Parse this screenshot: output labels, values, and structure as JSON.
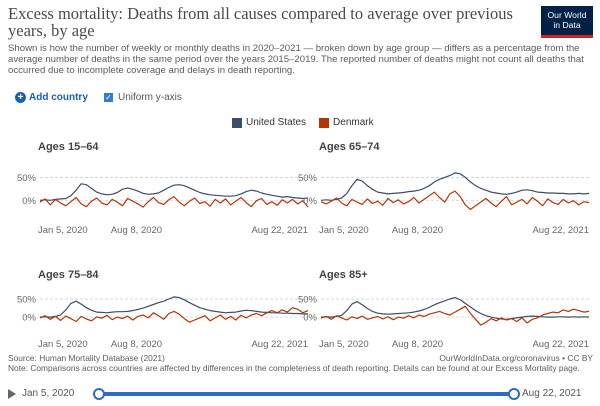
{
  "header": {
    "title": "Excess mortality: Deaths from all causes compared to average over previous years, by age",
    "subtitle": "Shown is how the number of weekly or monthly deaths in 2020–2021 — broken down by age group — differs as a percentage from the average number of deaths in the same period over the years 2015–2019. The reported number of deaths might not count all deaths that occurred due to incomplete coverage and delays in death reporting.",
    "logo_line1": "Our World",
    "logo_line2": "in Data"
  },
  "controls": {
    "add_country_label": "Add country",
    "uniform_y_label": "Uniform y-axis"
  },
  "colors": {
    "us": "#3c4e66",
    "dk": "#b13507"
  },
  "chart_data": [
    {
      "type": "line",
      "title": "Ages 15–64",
      "x_ticks": [
        "Jan 5, 2020",
        "Aug 8, 2020",
        "Aug 22, 2021"
      ],
      "y_ticks": [
        "50%",
        "0%"
      ],
      "ylim": [
        -30,
        75
      ],
      "legend": [
        "United States",
        "Denmark"
      ],
      "series": [
        {
          "name": "United States",
          "values": [
            0,
            1,
            0,
            2,
            3,
            4,
            10,
            22,
            36,
            34,
            26,
            18,
            14,
            12,
            13,
            17,
            24,
            27,
            24,
            20,
            15,
            13,
            14,
            16,
            22,
            28,
            33,
            34,
            32,
            27,
            22,
            17,
            14,
            12,
            11,
            10,
            9,
            9,
            10,
            14,
            19,
            22,
            20,
            16,
            13,
            11,
            9,
            7,
            8,
            6,
            5,
            4,
            5
          ]
        },
        {
          "name": "Denmark",
          "values": [
            -4,
            3,
            -10,
            2,
            -6,
            -12,
            -3,
            6,
            -8,
            -14,
            -2,
            5,
            -6,
            -10,
            2,
            -4,
            -12,
            4,
            -2,
            -8,
            -15,
            -3,
            6,
            -5,
            -9,
            1,
            8,
            -4,
            -12,
            -2,
            5,
            -7,
            -3,
            -13,
            2,
            -6,
            3,
            -10,
            -2,
            6,
            -5,
            -14,
            -1,
            4,
            -9,
            -3,
            -11,
            1,
            -6,
            2,
            -8,
            -1,
            -15
          ]
        }
      ]
    },
    {
      "type": "line",
      "title": "Ages 65–74",
      "x_ticks": [
        "Jan 5, 2020",
        "Aug 8, 2020",
        "Aug 22, 2021"
      ],
      "y_ticks": [
        "50%",
        "0%"
      ],
      "ylim": [
        -30,
        75
      ],
      "legend": [
        "United States",
        "Denmark"
      ],
      "series": [
        {
          "name": "United States",
          "values": [
            0,
            1,
            0,
            2,
            5,
            15,
            32,
            46,
            42,
            32,
            24,
            18,
            16,
            14,
            15,
            16,
            17,
            19,
            20,
            22,
            26,
            32,
            40,
            46,
            50,
            54,
            60,
            58,
            50,
            40,
            32,
            26,
            22,
            18,
            16,
            14,
            13,
            15,
            18,
            22,
            23,
            21,
            18,
            17,
            16,
            16,
            15,
            15,
            14,
            14,
            15,
            14,
            15
          ]
        },
        {
          "name": "Denmark",
          "values": [
            -3,
            -8,
            -2,
            5,
            -6,
            -12,
            2,
            -4,
            -9,
            3,
            -7,
            -2,
            -11,
            4,
            -5,
            1,
            -8,
            -3,
            6,
            -6,
            2,
            10,
            18,
            6,
            -4,
            14,
            20,
            8,
            -10,
            -20,
            -12,
            -4,
            4,
            -6,
            -14,
            -2,
            8,
            -10,
            -4,
            2,
            -8,
            6,
            -2,
            -12,
            3,
            -5,
            -9,
            2,
            -6,
            -1,
            -10,
            -3,
            -5
          ]
        }
      ]
    },
    {
      "type": "line",
      "title": "Ages 75–84",
      "x_ticks": [
        "Jan 5, 2020",
        "Aug 8, 2020",
        "Aug 22, 2021"
      ],
      "y_ticks": [
        "50%",
        "0%"
      ],
      "ylim": [
        -30,
        75
      ],
      "legend": [
        "United States",
        "Denmark"
      ],
      "series": [
        {
          "name": "United States",
          "values": [
            0,
            1,
            0,
            2,
            6,
            20,
            38,
            44,
            36,
            26,
            19,
            14,
            13,
            12,
            14,
            15,
            15,
            16,
            18,
            21,
            25,
            30,
            35,
            40,
            44,
            50,
            56,
            54,
            48,
            40,
            33,
            26,
            22,
            18,
            16,
            14,
            12,
            13,
            14,
            17,
            19,
            18,
            16,
            14,
            13,
            12,
            12,
            11,
            11,
            10,
            10,
            9,
            9
          ]
        },
        {
          "name": "Denmark",
          "values": [
            -2,
            4,
            -6,
            2,
            -9,
            3,
            -4,
            -12,
            2,
            -5,
            -10,
            1,
            -3,
            5,
            -7,
            0,
            -4,
            3,
            -8,
            2,
            6,
            -2,
            12,
            4,
            -6,
            10,
            16,
            8,
            -4,
            -14,
            -8,
            -2,
            4,
            -10,
            -2,
            6,
            -6,
            2,
            -8,
            5,
            -2,
            6,
            10,
            4,
            12,
            18,
            12,
            20,
            14,
            26,
            22,
            12,
            18
          ]
        }
      ]
    },
    {
      "type": "line",
      "title": "Ages 85+",
      "x_ticks": [
        "Jan 5, 2020",
        "Aug 8, 2020",
        "Aug 22, 2021"
      ],
      "y_ticks": [
        "50%",
        "0%"
      ],
      "ylim": [
        -30,
        75
      ],
      "legend": [
        "United States",
        "Denmark"
      ],
      "series": [
        {
          "name": "United States",
          "values": [
            0,
            1,
            0,
            2,
            5,
            18,
            36,
            43,
            34,
            24,
            16,
            11,
            9,
            8,
            9,
            10,
            11,
            12,
            14,
            17,
            21,
            27,
            34,
            40,
            45,
            50,
            54,
            48,
            38,
            28,
            18,
            10,
            4,
            0,
            -3,
            -5,
            -6,
            -4,
            -2,
            0,
            2,
            3,
            2,
            1,
            0,
            0,
            1,
            1,
            0,
            1,
            0,
            1,
            0
          ]
        },
        {
          "name": "Denmark",
          "values": [
            -3,
            2,
            -6,
            4,
            -2,
            -8,
            1,
            -4,
            3,
            -6,
            -2,
            2,
            -5,
            1,
            -7,
            0,
            -3,
            4,
            -2,
            6,
            2,
            8,
            12,
            16,
            10,
            6,
            14,
            22,
            30,
            10,
            -6,
            -22,
            -14,
            -4,
            -10,
            -2,
            -8,
            -4,
            -12,
            -2,
            -16,
            -6,
            -2,
            6,
            10,
            14,
            12,
            20,
            16,
            22,
            18,
            14,
            16
          ]
        }
      ]
    }
  ],
  "footer": {
    "source": "Source: Human Mortality Database (2021)",
    "note": "Note: Comparisons across countries are affected by differences in the completeness of death reporting. Details can be found at our Excess Mortality page.",
    "url": "OurWorldInData.org/coronavirus • CC BY"
  },
  "timeline": {
    "start_label": "Jan 5, 2020",
    "end_label": "Aug 22, 2021"
  }
}
